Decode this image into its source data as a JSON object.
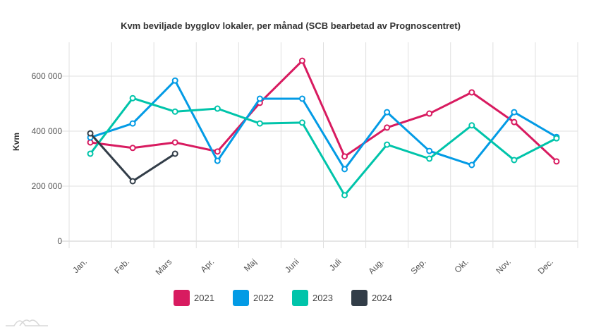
{
  "chart_data": {
    "type": "line",
    "title": "Kvm beviljade bygglov lokaler, per månad (SCB bearbetad av Prognoscentret)",
    "xlabel": "",
    "ylabel": "Kvm",
    "ylim": [
      0,
      720000
    ],
    "yticks": [
      0,
      200000,
      400000,
      600000
    ],
    "ytick_labels": [
      "0",
      "200 000",
      "400 000",
      "600 000"
    ],
    "grid": true,
    "legend_position": "bottom",
    "categories": [
      "Jan.",
      "Feb.",
      "Mars",
      "Apr.",
      "Maj",
      "Juni",
      "Juli",
      "Aug.",
      "Sep.",
      "Okt.",
      "Nov.",
      "Dec."
    ],
    "series": [
      {
        "name": "2021",
        "color": "#d81b60",
        "values": [
          359000,
          339000,
          359000,
          326000,
          503000,
          656000,
          308000,
          413000,
          464000,
          541000,
          433000,
          290000
        ]
      },
      {
        "name": "2022",
        "color": "#039be5",
        "values": [
          377000,
          428000,
          584000,
          292000,
          518000,
          518000,
          262000,
          469000,
          328000,
          277000,
          469000,
          379000
        ]
      },
      {
        "name": "2023",
        "color": "#00c4aa",
        "values": [
          318000,
          520000,
          471000,
          482000,
          428000,
          431000,
          167000,
          351000,
          300000,
          421000,
          295000,
          374000
        ]
      },
      {
        "name": "2024",
        "color": "#323d48",
        "values": [
          392000,
          218000,
          318000,
          null,
          null,
          null,
          null,
          null,
          null,
          null,
          null,
          null
        ]
      }
    ]
  }
}
